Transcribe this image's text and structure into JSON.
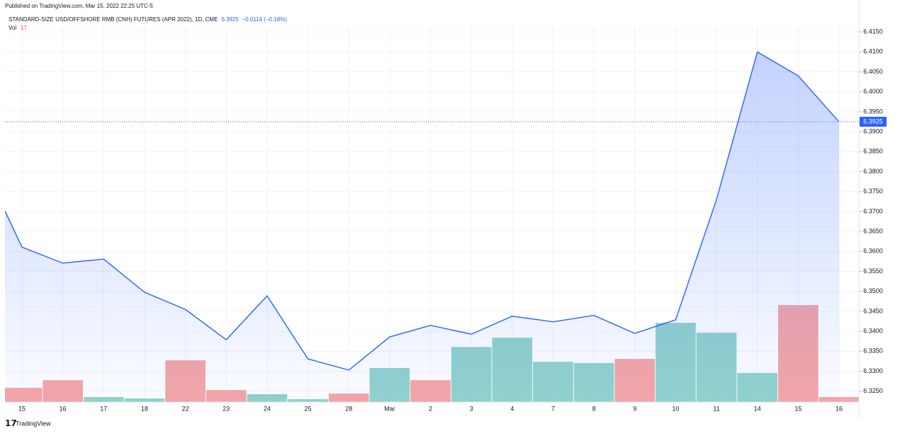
{
  "published": "Published on TradingView.com, Mar 15, 2022 22:25 UTC-5",
  "footer": "TradingView",
  "chart_data": {
    "type": "line",
    "change_label": "−0.0114 (−0.18%)",
    "categories": [
      null,
      "15",
      "16",
      "17",
      "18",
      "22",
      "23",
      "24",
      "25",
      "28",
      "Mar",
      "2",
      "3",
      "4",
      "7",
      "8",
      "9",
      "10",
      "11",
      "14",
      "15",
      "16"
    ],
    "series": [
      {
        "name": "STANDARD-SIZE USD/OFFSHORE RMB (CNH) FUTURES (APR 2022), 1D, CME",
        "color": "#2962ff",
        "values": [
          6.3702,
          6.3611,
          6.3571,
          6.3581,
          6.3498,
          6.3455,
          6.3379,
          6.3489,
          6.3331,
          6.3303,
          6.3386,
          6.3415,
          6.3393,
          6.3438,
          6.3424,
          6.344,
          6.3395,
          6.3429,
          6.373,
          6.41,
          6.404,
          6.3925
        ]
      },
      {
        "name": "Vol",
        "type": "bar",
        "values": [
          null,
          49,
          75,
          17,
          12,
          143,
          41,
          27,
          10,
          29,
          117,
          75,
          189,
          221,
          138,
          134,
          148,
          272,
          238,
          100,
          333,
          17
        ],
        "colors": [
          null,
          "#f5a6a6",
          "#f5a6a6",
          "#92d2cc",
          "#92d2cc",
          "#f5a6a6",
          "#f5a6a6",
          "#92d2cc",
          "#92d2cc",
          "#f5a6a6",
          "#92d2cc",
          "#f5a6a6",
          "#92d2cc",
          "#92d2cc",
          "#92d2cc",
          "#92d2cc",
          "#f5a6a6",
          "#92d2cc",
          "#92d2cc",
          "#92d2cc",
          "#f5a6a6",
          "#f5a6a6"
        ]
      }
    ],
    "ylim": [
      6.3223,
      6.4168
    ],
    "yticks": [
      {
        "value": 6.325,
        "label": "6.3250"
      },
      {
        "value": 6.33,
        "label": "6.3300"
      },
      {
        "value": 6.335,
        "label": "6.3350"
      },
      {
        "value": 6.34,
        "label": "6.3400"
      },
      {
        "value": 6.345,
        "label": "6.3450"
      },
      {
        "value": 6.35,
        "label": "6.3500"
      },
      {
        "value": 6.355,
        "label": "6.3550"
      },
      {
        "value": 6.36,
        "label": "6.3600"
      },
      {
        "value": 6.365,
        "label": "6.3650"
      },
      {
        "value": 6.37,
        "label": "6.3700"
      },
      {
        "value": 6.375,
        "label": "6.3750"
      },
      {
        "value": 6.38,
        "label": "6.3800"
      },
      {
        "value": 6.385,
        "label": "6.3850"
      },
      {
        "value": 6.39,
        "label": "6.3900"
      },
      {
        "value": 6.395,
        "label": "6.3950"
      },
      {
        "value": 6.4,
        "label": "6.4000"
      },
      {
        "value": 6.405,
        "label": "6.4050"
      },
      {
        "value": 6.41,
        "label": "6.4100"
      },
      {
        "value": 6.415,
        "label": "6.4150"
      }
    ],
    "grid": true
  }
}
